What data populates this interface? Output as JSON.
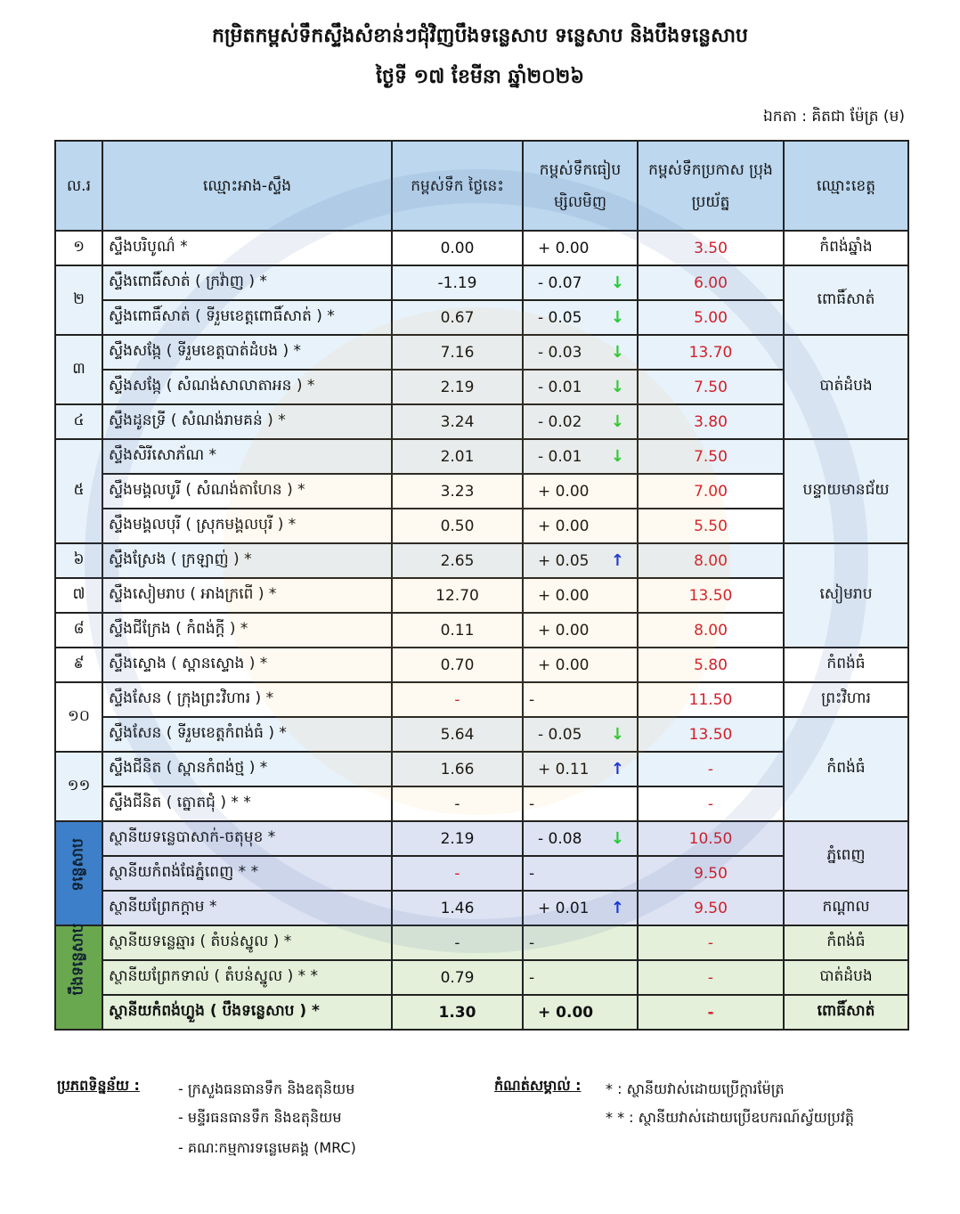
{
  "title": "កម្រិតកម្ពស់ទឹកស្ទឹងសំខាន់ៗជុំវិញបឹងទន្លេសាប ទន្លេសាប និងបឹងទន្លេសាប",
  "date": "ថ្ងៃទី ១៧ ខែមីនា ឆ្នាំ២០២៦",
  "unit": "ឯកតា : គិតជា ម៉ែត្រ (ម)",
  "colors": {
    "header": "#bcd7ee",
    "alarm": "#d0202a",
    "down": "#22cc33",
    "up": "#1030e0",
    "tonle_sap": "#3d7fc8",
    "lake": "#6aa84f"
  },
  "headers": [
    "ល.រ",
    "ឈ្មោះអាង-ស្ទឹង",
    "កម្ពស់ទឹក ថ្ងៃនេះ",
    "កម្ពស់ទឹកធៀប ម្សិលមិញ",
    "កម្ពស់ទឹកប្រកាស ប្រុងប្រយ័ត្ន",
    "ឈ្មោះខេត្ត"
  ],
  "group_labels": {
    "tonle_sap": "ទន្លេសាប",
    "lake": "បឹងទន្លេសាប"
  },
  "rows": [
    {
      "no": "១",
      "no_span": 1,
      "name": "ស្ទឹងបរិបូណ៌ *",
      "today": "0.00",
      "change": "+ 0.00",
      "trend": null,
      "alarm": "3.50",
      "province": "កំពង់ឆ្នាំង",
      "prov_span": 1
    },
    {
      "no": "២",
      "no_span": 2,
      "name": "ស្ទឹងពោធិ៍សាត់ ( ក្រវ៉ាញ ) *",
      "today": "-1.19",
      "change": "- 0.07",
      "trend": "down",
      "alarm": "6.00",
      "province": "ពោធិ៍សាត់",
      "prov_span": 2
    },
    {
      "name": "ស្ទឹងពោធិ៍សាត់ ( ទីរួមខេត្តពោធិ៍សាត់ ) *",
      "today": "0.67",
      "change": "- 0.05",
      "trend": "down",
      "alarm": "5.00"
    },
    {
      "no": "៣",
      "no_span": 2,
      "name": "ស្ទឹងសង្កែ ( ទីរួមខេត្តបាត់ដំបង ) *",
      "today": "7.16",
      "change": "- 0.03",
      "trend": "down",
      "alarm": "13.70",
      "province": "បាត់ដំបង",
      "prov_span": 3
    },
    {
      "name": "ស្ទឹងសង្កែ ( សំណង់សាលាតាអន ) *",
      "today": "2.19",
      "change": "- 0.01",
      "trend": "down",
      "alarm": "7.50"
    },
    {
      "no": "៤",
      "no_span": 1,
      "name": "ស្ទឹងដូនទ្រី ( សំណង់រាមគន់ ) *",
      "today": "3.24",
      "change": "- 0.02",
      "trend": "down",
      "alarm": "3.80"
    },
    {
      "no": "៥",
      "no_span": 3,
      "name": "ស្ទឹងសិរីសោភ័ណ *",
      "today": "2.01",
      "change": "- 0.01",
      "trend": "down",
      "alarm": "7.50",
      "province": "បន្ទាយមានជ័យ",
      "prov_span": 3
    },
    {
      "name": "ស្ទឹងមង្គលបូរី ( សំណង់តាហែន ) *",
      "today": "3.23",
      "change": "+ 0.00",
      "trend": null,
      "alarm": "7.00"
    },
    {
      "name": "ស្ទឹងមង្គលបុរី ( ស្រុកមង្គលបុរី ) *",
      "today": "0.50",
      "change": "+ 0.00",
      "trend": null,
      "alarm": "5.50"
    },
    {
      "no": "៦",
      "no_span": 1,
      "name": "ស្ទឹងស្រែង ( ក្រឡាញ់ ) *",
      "today": "2.65",
      "change": "+ 0.05",
      "trend": "up",
      "alarm": "8.00",
      "province": "សៀមរាប",
      "prov_span": 3
    },
    {
      "no": "៧",
      "no_span": 1,
      "name": "ស្ទឹងសៀមរាប ( អាងក្រពើ ) *",
      "today": "12.70",
      "change": "+ 0.00",
      "trend": null,
      "alarm": "13.50"
    },
    {
      "no": "៨",
      "no_span": 1,
      "name": "ស្ទឹងជីក្រែង ( កំពង់ក្ដី ) *",
      "today": "0.11",
      "change": "+ 0.00",
      "trend": null,
      "alarm": "8.00"
    },
    {
      "no": "៩",
      "no_span": 1,
      "name": "ស្ទឹងស្ទោង ( ស្ពានស្ទោង ) *",
      "today": "0.70",
      "change": "+ 0.00",
      "trend": null,
      "alarm": "5.80",
      "province": "កំពង់ធំ",
      "prov_span": 1
    },
    {
      "no": "១០",
      "no_span": 2,
      "name": "ស្ទឹងសែន ( ក្រុងព្រះវិហារ ) *",
      "today": "-",
      "change": "-",
      "trend": null,
      "alarm": "11.50",
      "province": "ព្រះវិហារ",
      "prov_span": 1
    },
    {
      "name": "ស្ទឹងសែន ( ទីរួមខេត្តកំពង់ធំ ) *",
      "today": "5.64",
      "change": "- 0.05",
      "trend": "down",
      "alarm": "13.50",
      "province": "កំពង់ធំ",
      "prov_span": 3
    },
    {
      "no": "១១",
      "no_span": 2,
      "name": "ស្ទឹងជីនិត ( ស្ពានកំពង់ថ្ម ) *",
      "today": "1.66",
      "change": "+ 0.11",
      "trend": "up",
      "alarm": "-"
    },
    {
      "name": "ស្ទឹងជីនិត ( ត្នោតជុំ ) * *",
      "today": "-",
      "change": "-",
      "trend": null,
      "alarm": "-"
    },
    {
      "group": "tonle_sap",
      "group_span": 3,
      "name": "ស្ថានីយទន្លេបាសាក់-ចតុមុខ *",
      "today": "2.19",
      "change": "- 0.08",
      "trend": "down",
      "alarm": "10.50",
      "province": "ភ្នំពេញ",
      "prov_span": 2
    },
    {
      "group": "tonle_sap",
      "name": "ស្ថានីយកំពង់ផែភ្នំពេញ * *",
      "today": "-",
      "change": "-",
      "trend": null,
      "alarm": "9.50"
    },
    {
      "group": "tonle_sap",
      "name": "ស្ថានីយព្រែកក្ដាម *",
      "today": "1.46",
      "change": "+ 0.01",
      "trend": "up",
      "alarm": "9.50",
      "province": "កណ្ដាល",
      "prov_span": 1
    },
    {
      "group": "lake",
      "group_span": 3,
      "name": "ស្ថានីយទន្លេឆ្មារ ( តំបន់ស្នូល ) *",
      "today": "-",
      "change": "-",
      "trend": null,
      "alarm": "-",
      "province": "កំពង់ធំ",
      "prov_span": 1
    },
    {
      "group": "lake",
      "name": "ស្ថានីយព្រែកទាល់ ( តំបន់ស្នូល ) * *",
      "today": "0.79",
      "change": "-",
      "trend": null,
      "alarm": "-",
      "province": "បាត់ដំបង",
      "prov_span": 1
    },
    {
      "group": "lake",
      "bold": true,
      "name": "ស្ថានីយកំពង់ហ្លួង ( បឹងទន្លេសាប ) *",
      "today": "1.30",
      "change": "+ 0.00",
      "trend": null,
      "alarm": "-",
      "province": "ពោធិ៍សាត់",
      "prov_span": 1
    }
  ],
  "footer": {
    "sources_label": "ប្រភពទិន្នន័យ :",
    "sources": [
      "- ក្រសួងធនធានទឹក និងឧតុនិយម",
      "- មន្ទីរធនធានទឹក និងឧតុនិយម",
      "- គណៈកម្មការទន្លេមេគង្គ (MRC)"
    ],
    "notes_label": "កំណត់សម្គាល់ :",
    "notes": [
      "*   : ស្ថានីយវាស់ដោយប្រើក្ដារម៉ែត្រ",
      "* * : ស្ថានីយវាស់ដោយប្រើឧបករណ៍ស្វ័យប្រវត្តិ"
    ]
  }
}
